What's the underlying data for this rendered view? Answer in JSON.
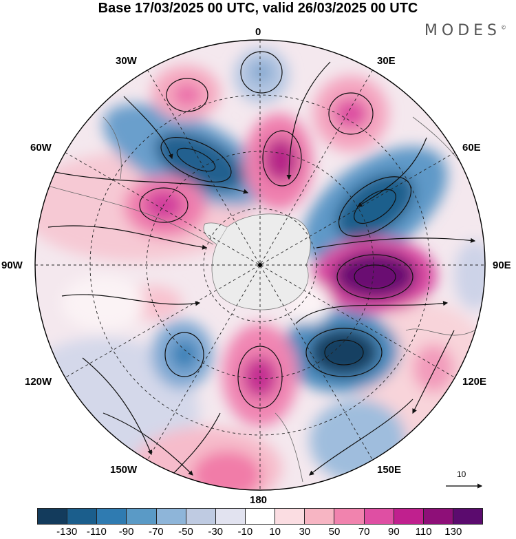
{
  "title": "Base 17/03/2025 00 UTC, valid 26/03/2025 00 UTC",
  "brand": "MODES",
  "brand_mark": "©",
  "longitude_labels": {
    "lon_0": "0",
    "lon_30e": "30E",
    "lon_60e": "60E",
    "lon_90e": "90E",
    "lon_120e": "120E",
    "lon_150e": "150E",
    "lon_180": "180",
    "lon_150w": "150W",
    "lon_120w": "120W",
    "lon_90w": "90W",
    "lon_60w": "60W",
    "lon_30w": "30W"
  },
  "reference_vector": {
    "label": "10"
  },
  "colorbar": {
    "colors": [
      "#133b5c",
      "#1b5e8c",
      "#2f7bb1",
      "#5a9ac6",
      "#8eb5d9",
      "#bfcbe2",
      "#e2e3f0",
      "#ffffff",
      "#fbdde2",
      "#f7b5c3",
      "#f183ae",
      "#df4fa3",
      "#c0208e",
      "#8e0f78",
      "#5b0b6e"
    ],
    "ticks": [
      "-130",
      "-110",
      "-90",
      "-70",
      "-50",
      "-30",
      "-10",
      "10",
      "30",
      "50",
      "70",
      "90",
      "110",
      "130"
    ]
  }
}
